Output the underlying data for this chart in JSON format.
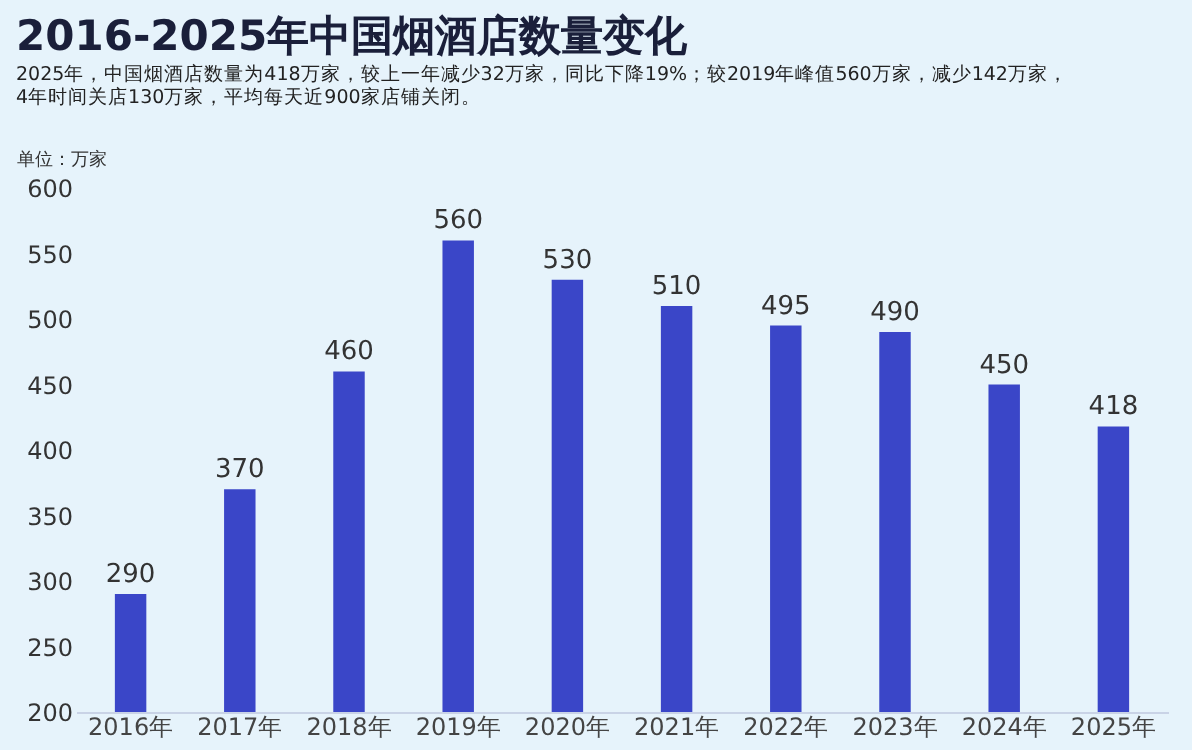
{
  "chart_data": {
    "type": "bar",
    "title": "2016-2025年中国烟酒店数量变化",
    "subtitle": "2025年，中国烟酒店数量为418万家，较上一年减少32万家，同比下降19%；较2019年峰值560万家，减少142万家，",
    "annotations": [
      "4年时间关店130万家，平均每天近900家店铺关闭。"
    ],
    "ylabel": "单位：万家",
    "categories": [
      "2016年",
      "2017年",
      "2018年",
      "2019年",
      "2020年",
      "2021年",
      "2022年",
      "2023年",
      "2024年",
      "2025年"
    ],
    "values": [
      290,
      370,
      460,
      560,
      530,
      510,
      495,
      490,
      450,
      418
    ],
    "color": "#3a46c8",
    "ylim": [
      200,
      600
    ],
    "yticks": [
      200,
      250,
      300,
      350,
      400,
      450,
      500,
      550,
      600
    ],
    "data_labels": true,
    "grid": false
  }
}
